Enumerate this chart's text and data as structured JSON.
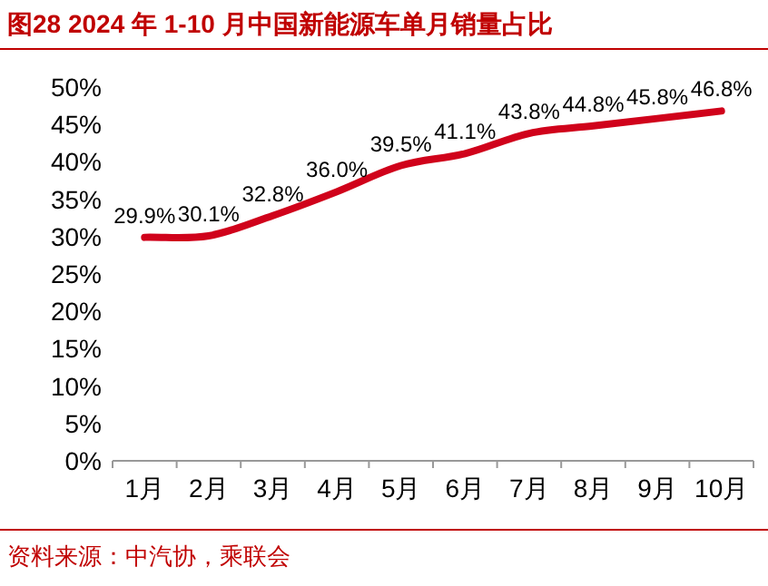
{
  "chart_data": {
    "type": "line",
    "title": "图28  2024 年 1-10 月中国新能源车单月销量占比",
    "categories": [
      "1月",
      "2月",
      "3月",
      "4月",
      "5月",
      "6月",
      "7月",
      "8月",
      "9月",
      "10月"
    ],
    "values": [
      29.9,
      30.1,
      32.8,
      36.0,
      39.5,
      41.1,
      43.8,
      44.8,
      45.8,
      46.8
    ],
    "value_labels": [
      "29.9%",
      "30.1%",
      "32.8%",
      "36.0%",
      "39.5%",
      "41.1%",
      "43.8%",
      "44.8%",
      "45.8%",
      "46.8%"
    ],
    "color": "#d0021b",
    "ylim": [
      0,
      50
    ],
    "yticks": [
      {
        "value": 0,
        "label": "0%"
      },
      {
        "value": 5,
        "label": "5%"
      },
      {
        "value": 10,
        "label": "10%"
      },
      {
        "value": 15,
        "label": "15%"
      },
      {
        "value": 20,
        "label": "20%"
      },
      {
        "value": 25,
        "label": "25%"
      },
      {
        "value": 30,
        "label": "30%"
      },
      {
        "value": 35,
        "label": "35%"
      },
      {
        "value": 40,
        "label": "40%"
      },
      {
        "value": 45,
        "label": "45%"
      },
      {
        "value": 50,
        "label": "50%"
      }
    ],
    "annotations": [
      "资料来源：中汽协，乘联会"
    ]
  }
}
